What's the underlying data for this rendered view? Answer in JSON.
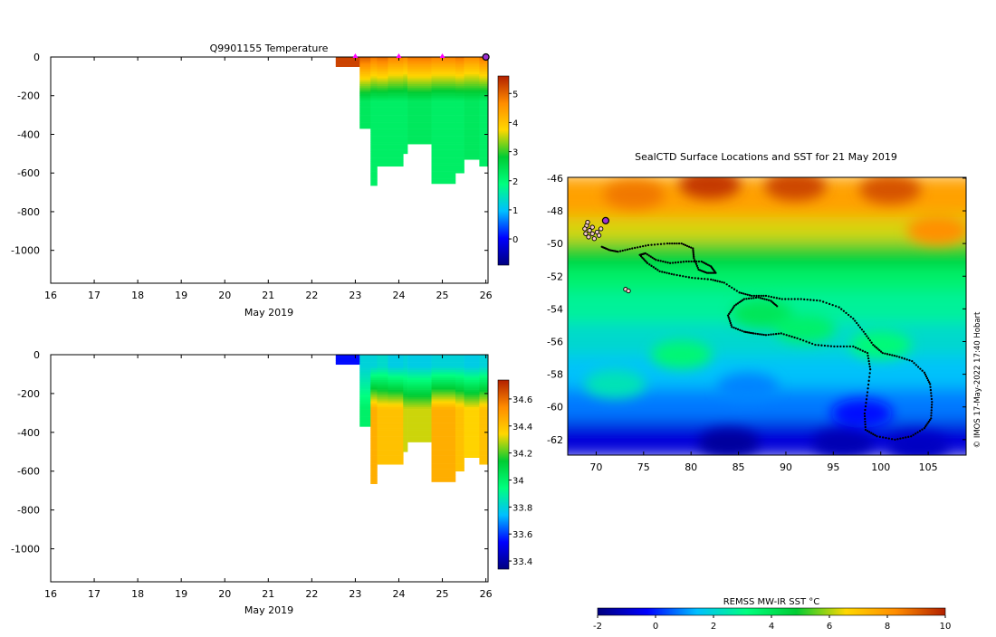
{
  "chart_data": [
    {
      "type": "heatmap",
      "title": "Q9901155  Temperature",
      "xlabel": "May 2019",
      "ylabel": "",
      "x_ticks": [
        "16",
        "17",
        "18",
        "19",
        "20",
        "21",
        "22",
        "23",
        "24",
        "25",
        "26"
      ],
      "x_tick_values": [
        16,
        17,
        18,
        19,
        20,
        21,
        22,
        23,
        24,
        25,
        26
      ],
      "y_ticks": [
        "0",
        "-200",
        "-400",
        "-600",
        "-800",
        "-1000"
      ],
      "y_tick_values": [
        0,
        -200,
        -400,
        -600,
        -800,
        -1000
      ],
      "xlim": [
        16,
        26.05
      ],
      "ylim": [
        -1170,
        0
      ],
      "colorbar": {
        "ticks": [
          "5",
          "4",
          "3",
          "2",
          "1",
          "0"
        ],
        "tick_values": [
          5,
          4,
          3,
          2,
          1,
          0
        ],
        "range": [
          -0.9,
          5.6
        ]
      },
      "markers": {
        "day": [
          23,
          24,
          25
        ],
        "color": "#ff00ff",
        "last_profile_day": 26,
        "last_profile_color": "#9b30d0"
      },
      "columns": [
        {
          "x0": 22.55,
          "x1": 23.1,
          "depth": -50,
          "t_surface": 5.3,
          "t_deep": 5.3
        },
        {
          "x0": 23.1,
          "x1": 23.35,
          "depth": -370,
          "t_surface": 4.5,
          "t_deep": 2.3
        },
        {
          "x0": 23.35,
          "x1": 23.5,
          "depth": -665,
          "t_surface": 4.3,
          "t_deep": 2.2
        },
        {
          "x0": 23.5,
          "x1": 23.75,
          "depth": -565,
          "t_surface": 4.4,
          "t_deep": 2.2
        },
        {
          "x0": 23.75,
          "x1": 24.1,
          "depth": -565,
          "t_surface": 4.2,
          "t_deep": 2.2
        },
        {
          "x0": 24.1,
          "x1": 24.2,
          "depth": -500,
          "t_surface": 4.1,
          "t_deep": 2.2
        },
        {
          "x0": 24.2,
          "x1": 24.75,
          "depth": -450,
          "t_surface": 4.3,
          "t_deep": 2.3
        },
        {
          "x0": 24.75,
          "x1": 25.3,
          "depth": -655,
          "t_surface": 4.2,
          "t_deep": 2.2
        },
        {
          "x0": 25.3,
          "x1": 25.5,
          "depth": -600,
          "t_surface": 4.3,
          "t_deep": 2.2
        },
        {
          "x0": 25.5,
          "x1": 25.85,
          "depth": -530,
          "t_surface": 4.1,
          "t_deep": 2.3
        },
        {
          "x0": 25.85,
          "x1": 26.05,
          "depth": -565,
          "t_surface": 4.3,
          "t_deep": 2.2
        }
      ]
    },
    {
      "type": "heatmap",
      "title": "",
      "xlabel": "May 2019",
      "ylabel": "",
      "x_ticks": [
        "16",
        "17",
        "18",
        "19",
        "20",
        "21",
        "22",
        "23",
        "24",
        "25",
        "26"
      ],
      "x_tick_values": [
        16,
        17,
        18,
        19,
        20,
        21,
        22,
        23,
        24,
        25,
        26
      ],
      "y_ticks": [
        "0",
        "-200",
        "-400",
        "-600",
        "-800",
        "-1000"
      ],
      "y_tick_values": [
        0,
        -200,
        -400,
        -600,
        -800,
        -1000
      ],
      "xlim": [
        16,
        26.05
      ],
      "ylim": [
        -1170,
        0
      ],
      "colorbar": {
        "ticks": [
          "34.6",
          "34.4",
          "34.2",
          "34",
          "33.8",
          "33.6",
          "33.4"
        ],
        "tick_values": [
          34.6,
          34.4,
          34.2,
          34.0,
          33.8,
          33.6,
          33.4
        ],
        "range": [
          33.34,
          34.74
        ]
      },
      "columns": [
        {
          "x0": 22.55,
          "x1": 23.1,
          "depth": -50,
          "s_surface": 33.55,
          "s_deep": 33.55
        },
        {
          "x0": 23.1,
          "x1": 23.35,
          "depth": -370,
          "s_surface": 33.8,
          "s_deep": 34.0
        },
        {
          "x0": 23.35,
          "x1": 23.5,
          "depth": -665,
          "s_surface": 33.8,
          "s_deep": 34.45
        },
        {
          "x0": 23.5,
          "x1": 23.75,
          "depth": -565,
          "s_surface": 33.82,
          "s_deep": 34.4
        },
        {
          "x0": 23.75,
          "x1": 24.1,
          "depth": -565,
          "s_surface": 33.78,
          "s_deep": 34.4
        },
        {
          "x0": 24.1,
          "x1": 24.2,
          "depth": -500,
          "s_surface": 33.8,
          "s_deep": 34.3
        },
        {
          "x0": 24.2,
          "x1": 24.75,
          "depth": -450,
          "s_surface": 33.78,
          "s_deep": 34.3
        },
        {
          "x0": 24.75,
          "x1": 25.3,
          "depth": -655,
          "s_surface": 33.8,
          "s_deep": 34.45
        },
        {
          "x0": 25.3,
          "x1": 25.5,
          "depth": -600,
          "s_surface": 33.8,
          "s_deep": 34.4
        },
        {
          "x0": 25.5,
          "x1": 25.85,
          "depth": -530,
          "s_surface": 33.78,
          "s_deep": 34.35
        },
        {
          "x0": 25.85,
          "x1": 26.05,
          "depth": -565,
          "s_surface": 33.8,
          "s_deep": 34.4
        }
      ]
    },
    {
      "type": "heatmap",
      "title": "SealCTD Surface Locations and SST for 21 May 2019",
      "xlabel": "",
      "ylabel": "",
      "x_ticks": [
        "70",
        "75",
        "80",
        "85",
        "90",
        "95",
        "100",
        "105"
      ],
      "x_tick_values": [
        70,
        75,
        80,
        85,
        90,
        95,
        100,
        105
      ],
      "y_ticks": [
        "-46",
        "-48",
        "-50",
        "-52",
        "-54",
        "-56",
        "-58",
        "-60",
        "-62"
      ],
      "y_tick_values": [
        -46,
        -48,
        -50,
        -52,
        -54,
        -56,
        -58,
        -60,
        -62
      ],
      "xlim": [
        67,
        109
      ],
      "ylim": [
        -62.95,
        -45.95
      ],
      "colorbar": {
        "label": "REMSS MW-IR SST °C",
        "ticks": [
          "-2",
          "0",
          "2",
          "4",
          "6",
          "8",
          "10"
        ],
        "tick_values": [
          -2,
          0,
          2,
          4,
          6,
          8,
          10
        ],
        "range": [
          -2,
          10
        ]
      },
      "sst_bands": [
        {
          "lat0": -45.95,
          "lat1": -48.5,
          "sst": 7.8
        },
        {
          "lat0": -48.5,
          "lat1": -50.0,
          "sst": 6.3
        },
        {
          "lat0": -50.0,
          "lat1": -51.5,
          "sst": 4.8
        },
        {
          "lat0": -51.5,
          "lat1": -53.0,
          "sst": 3.6
        },
        {
          "lat0": -53.0,
          "lat1": -55.0,
          "sst": 2.8
        },
        {
          "lat0": -55.0,
          "lat1": -57.0,
          "sst": 2.1
        },
        {
          "lat0": -57.0,
          "lat1": -59.0,
          "sst": 1.5
        },
        {
          "lat0": -59.0,
          "lat1": -61.0,
          "sst": 0.8
        },
        {
          "lat0": -61.0,
          "lat1": -62.95,
          "sst": -0.8
        }
      ],
      "sst_features": [
        {
          "lon": 82,
          "lat": -46.4,
          "sst": 9.6
        },
        {
          "lon": 91,
          "lat": -46.5,
          "sst": 9.4
        },
        {
          "lon": 101,
          "lat": -46.7,
          "sst": 9.2
        },
        {
          "lon": 74,
          "lat": -47.0,
          "sst": 8.6
        },
        {
          "lon": 106,
          "lat": -49.2,
          "sst": 8.2
        },
        {
          "lon": 87.5,
          "lat": -54.3,
          "sst": 4.0
        },
        {
          "lon": 92,
          "lat": -55.2,
          "sst": 3.6
        },
        {
          "lon": 79,
          "lat": -56.8,
          "sst": 3.4
        },
        {
          "lon": 100,
          "lat": -56.2,
          "sst": 3.3
        },
        {
          "lon": 72,
          "lat": -58.6,
          "sst": 2.4
        },
        {
          "lon": 86,
          "lat": -58.8,
          "sst": 0.9
        },
        {
          "lon": 98,
          "lat": -60.4,
          "sst": -0.2
        },
        {
          "lon": 84,
          "lat": -62.2,
          "sst": -1.6
        },
        {
          "lon": 96,
          "lat": -62.2,
          "sst": -1.3
        },
        {
          "lon": 104,
          "lat": -62.4,
          "sst": -1.1
        }
      ],
      "track": [
        [
          70.6,
          -50.2
        ],
        [
          71.4,
          -50.4
        ],
        [
          72.3,
          -50.5
        ],
        [
          73.8,
          -50.3
        ],
        [
          75.5,
          -50.1
        ],
        [
          77.5,
          -50.0
        ],
        [
          79,
          -50.0
        ],
        [
          80.2,
          -50.3
        ],
        [
          80.3,
          -50.9
        ],
        [
          80.8,
          -51.6
        ],
        [
          81.7,
          -51.8
        ],
        [
          82.6,
          -51.8
        ],
        [
          82.1,
          -51.4
        ],
        [
          81.1,
          -51.1
        ],
        [
          79.5,
          -51.1
        ],
        [
          77.8,
          -51.2
        ],
        [
          76.3,
          -51.0
        ],
        [
          75.2,
          -50.6
        ],
        [
          74.6,
          -50.7
        ],
        [
          75.4,
          -51.2
        ],
        [
          76.7,
          -51.7
        ],
        [
          78.2,
          -51.9
        ],
        [
          80.1,
          -52.1
        ],
        [
          82.1,
          -52.2
        ],
        [
          83.5,
          -52.4
        ],
        [
          85.1,
          -53.0
        ],
        [
          86.4,
          -53.2
        ],
        [
          87.9,
          -53.2
        ],
        [
          89.6,
          -53.4
        ],
        [
          91.6,
          -53.4
        ],
        [
          93.6,
          -53.5
        ],
        [
          95.6,
          -53.9
        ],
        [
          97.1,
          -54.6
        ],
        [
          98.2,
          -55.4
        ],
        [
          99.2,
          -56.2
        ],
        [
          100.2,
          -56.7
        ],
        [
          101.7,
          -56.9
        ],
        [
          103.3,
          -57.2
        ],
        [
          104.6,
          -57.9
        ],
        [
          105.2,
          -58.6
        ],
        [
          105.4,
          -59.7
        ],
        [
          105.3,
          -60.7
        ],
        [
          104.6,
          -61.3
        ],
        [
          103.2,
          -61.8
        ],
        [
          101.5,
          -62.0
        ],
        [
          99.6,
          -61.8
        ],
        [
          98.4,
          -61.4
        ],
        [
          98.3,
          -60.4
        ],
        [
          98.6,
          -59.1
        ],
        [
          98.9,
          -57.7
        ],
        [
          98.6,
          -56.7
        ],
        [
          97.1,
          -56.3
        ],
        [
          95.1,
          -56.3
        ],
        [
          93.1,
          -56.2
        ],
        [
          91.2,
          -55.8
        ],
        [
          89.5,
          -55.5
        ],
        [
          87.9,
          -55.6
        ],
        [
          86.6,
          -55.5
        ],
        [
          85.6,
          -55.4
        ],
        [
          84.3,
          -55.1
        ],
        [
          83.9,
          -54.4
        ],
        [
          84.6,
          -53.8
        ],
        [
          85.6,
          -53.4
        ],
        [
          87.1,
          -53.3
        ],
        [
          88.4,
          -53.5
        ],
        [
          89.2,
          -53.9
        ]
      ],
      "cluster_points": [
        [
          69.0,
          -48.9
        ],
        [
          69.3,
          -49.2
        ],
        [
          69.6,
          -49.4
        ],
        [
          69.2,
          -49.6
        ],
        [
          68.9,
          -49.4
        ],
        [
          69.6,
          -49.0
        ],
        [
          70.1,
          -49.3
        ],
        [
          69.8,
          -49.7
        ],
        [
          70.5,
          -49.1
        ],
        [
          70.3,
          -49.5
        ],
        [
          68.8,
          -49.1
        ],
        [
          69.1,
          -48.7
        ]
      ],
      "isolated_points": [
        [
          73.1,
          -52.8
        ],
        [
          73.4,
          -52.9
        ]
      ],
      "current_position": {
        "lon": 71.0,
        "lat": -48.6,
        "color": "#9b30d0"
      }
    }
  ],
  "credit": "© IMOS 17-May-2022 17:40 Hobart",
  "colors": {
    "marker_magenta": "#ff00ff",
    "current_marker": "#9b30d0",
    "track": "#000000",
    "colormap": [
      "#00007f",
      "#0000ff",
      "#00bfff",
      "#00ff7f",
      "#00cc33",
      "#ffd700",
      "#ff8c00",
      "#b22000"
    ]
  }
}
